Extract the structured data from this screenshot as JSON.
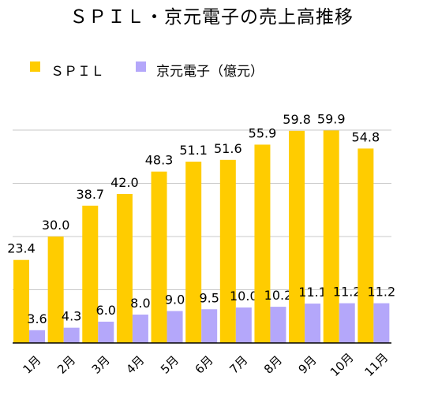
{
  "chart_data": {
    "type": "bar",
    "title": "ＳＰＩＬ・京元電子の売上高推移",
    "categories": [
      "1月",
      "2月",
      "3月",
      "4月",
      "5月",
      "6月",
      "7月",
      "8月",
      "9月",
      "10月",
      "11月"
    ],
    "series": [
      {
        "name": "ＳＰＩＬ",
        "color": "#ffcc00",
        "values": [
          23.4,
          30.0,
          38.7,
          42.0,
          48.3,
          51.1,
          51.6,
          55.9,
          59.8,
          59.9,
          54.8
        ]
      },
      {
        "name": "京元電子（億元）",
        "color": "#b4a7fa",
        "values": [
          3.6,
          4.3,
          6.0,
          8.0,
          9.0,
          9.5,
          10.0,
          10.2,
          11.1,
          11.2,
          11.2
        ]
      }
    ],
    "ylim": [
      0,
      60
    ],
    "grid": true,
    "legend": "top-left"
  }
}
